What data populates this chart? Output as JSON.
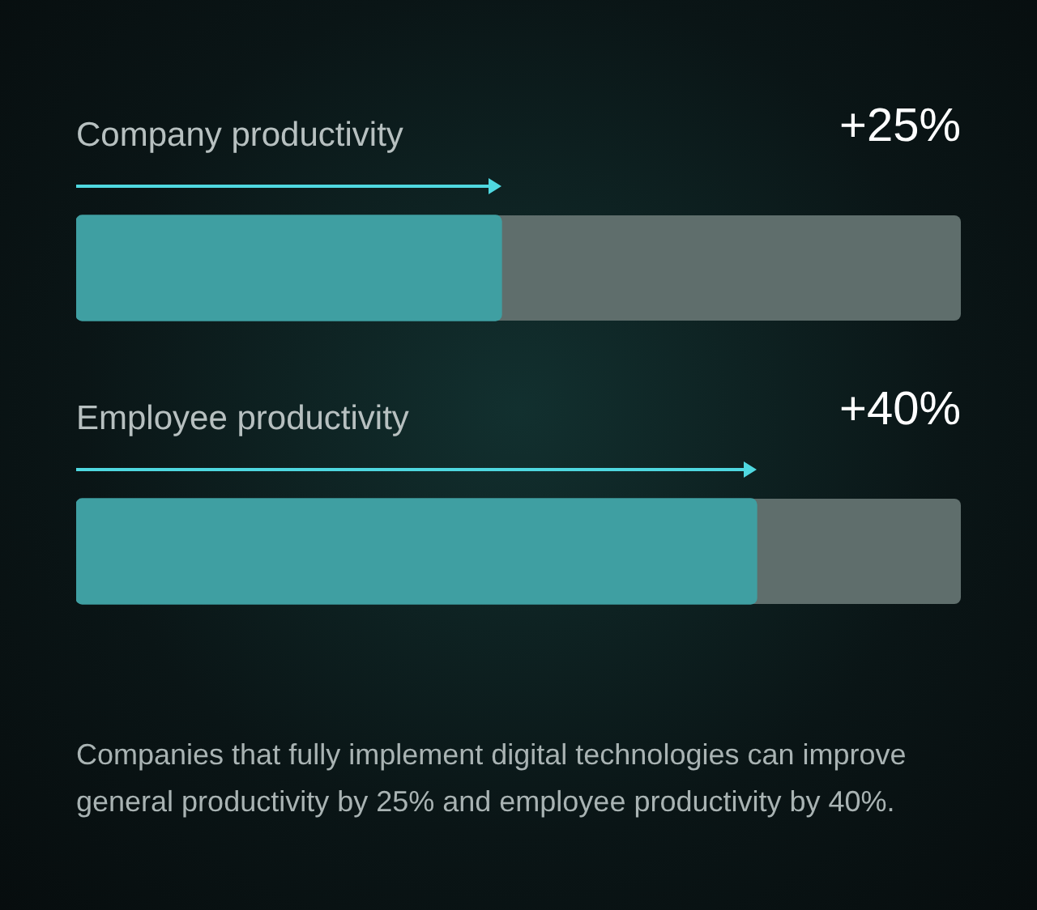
{
  "chart_data": {
    "type": "bar",
    "orientation": "horizontal",
    "categories": [
      "Company productivity",
      "Employee productivity"
    ],
    "values": [
      25,
      40
    ],
    "value_labels": [
      "+25%",
      "+40%"
    ],
    "color": "#3f9fa2",
    "xlim": [
      0,
      52
    ],
    "legend": false,
    "annotations": [
      "Companies that fully implement digital technologies can improve general productivity by 25% and employee productivity by 40%."
    ]
  }
}
